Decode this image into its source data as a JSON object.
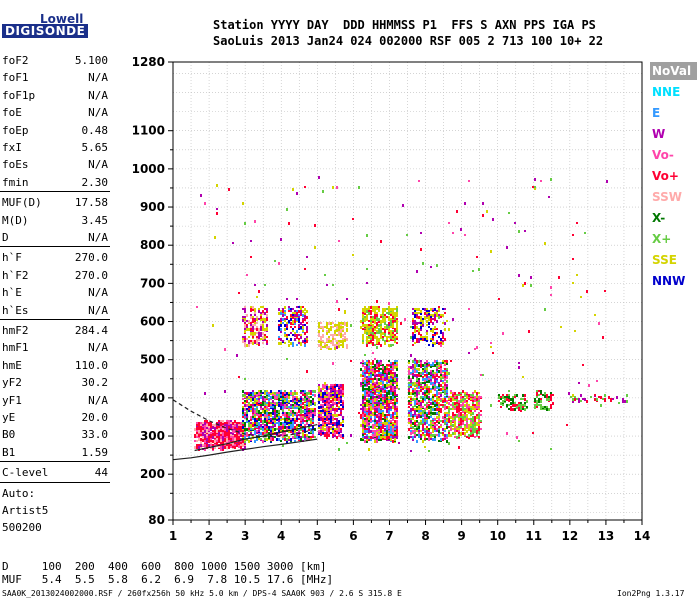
{
  "logo": {
    "top": "Lowell",
    "bottom": "DIGISONDE"
  },
  "header": {
    "line1": "Station YYYY DAY  DDD HHMMSS P1  FFS S AXN PPS IGA PS",
    "line2": "SaoLuis 2013 Jan24 024 002000 RSF 005 2 713 100 10+ 22"
  },
  "params": [
    {
      "name": "foF2",
      "value": "5.100"
    },
    {
      "name": "foF1",
      "value": "N/A"
    },
    {
      "name": "foF1p",
      "value": "N/A"
    },
    {
      "name": "foE",
      "value": "N/A"
    },
    {
      "name": "foEp",
      "value": "0.48"
    },
    {
      "name": "fxI",
      "value": "5.65"
    },
    {
      "name": "foEs",
      "value": "N/A"
    },
    {
      "name": "fmin",
      "value": "2.30"
    },
    {
      "name": "MUF(D)",
      "value": "17.58"
    },
    {
      "name": "M(D)",
      "value": "3.45"
    },
    {
      "name": "D",
      "value": "N/A"
    },
    {
      "name": "h`F",
      "value": "270.0"
    },
    {
      "name": "h`F2",
      "value": "270.0"
    },
    {
      "name": "h`E",
      "value": "N/A"
    },
    {
      "name": "h`Es",
      "value": "N/A"
    },
    {
      "name": "hmF2",
      "value": "284.4"
    },
    {
      "name": "hmF1",
      "value": "N/A"
    },
    {
      "name": "hmE",
      "value": "110.0"
    },
    {
      "name": "yF2",
      "value": "30.2"
    },
    {
      "name": "yF1",
      "value": "N/A"
    },
    {
      "name": "yE",
      "value": "20.0"
    },
    {
      "name": "B0",
      "value": "33.0"
    },
    {
      "name": "B1",
      "value": "1.59"
    },
    {
      "name": "C-level",
      "value": "44"
    }
  ],
  "auto": {
    "label": "Auto:",
    "artist": "Artist5",
    "code": "500200"
  },
  "legend": [
    {
      "label": "NoVal",
      "bg": "#a0a0a0",
      "fg": "#ffffff"
    },
    {
      "label": "NNE",
      "bg": "#ffffff",
      "fg": "#00e0ff"
    },
    {
      "label": "E",
      "bg": "#ffffff",
      "fg": "#3399ff"
    },
    {
      "label": "W",
      "bg": "#ffffff",
      "fg": "#b000b0"
    },
    {
      "label": "Vo-",
      "bg": "#ffffff",
      "fg": "#ff44aa"
    },
    {
      "label": "Vo+",
      "bg": "#ffffff",
      "fg": "#ff0033"
    },
    {
      "label": "SSW",
      "bg": "#ffffff",
      "fg": "#ffaaaa"
    },
    {
      "label": "X-",
      "bg": "#ffffff",
      "fg": "#007700"
    },
    {
      "label": "X+",
      "bg": "#ffffff",
      "fg": "#66cc44"
    },
    {
      "label": "SSE",
      "bg": "#ffffff",
      "fg": "#d4d400"
    },
    {
      "label": "NNW",
      "bg": "#ffffff",
      "fg": "#0000cc"
    }
  ],
  "bottom": {
    "d_line": "D     100  200  400  600  800 1000 1500 3000 [km]",
    "muf_line": "MUF   5.4  5.5  5.8  6.2  6.9  7.8 10.5 17.6 [MHz]",
    "footer": "SAA0K_2013024002000.RSF / 260fx256h 50 kHz 5.0 km / DPS-4 SAA0K 903 / 2.6 S 315.8 E",
    "version": "Ion2Png 1.3.17"
  },
  "chart_data": {
    "type": "scatter",
    "xlim": [
      1,
      14
    ],
    "ylim": [
      80,
      1280
    ],
    "xticks": [
      1,
      2,
      3,
      4,
      5,
      6,
      7,
      8,
      9,
      10,
      11,
      12,
      13,
      14
    ],
    "yticks": [
      80,
      200,
      300,
      400,
      500,
      600,
      700,
      800,
      900,
      1000,
      1100,
      1280
    ],
    "grid": true,
    "legend_placement": "right",
    "clusters": [
      {
        "x": [
          1.6,
          3.0
        ],
        "y": [
          270,
          340
        ],
        "density": 900,
        "colors": [
          "#ff0033",
          "#ff44aa",
          "#b000b0",
          "#ff0033",
          "#ffaaaa"
        ]
      },
      {
        "x": [
          2.9,
          4.9
        ],
        "y": [
          290,
          420
        ],
        "density": 1300,
        "colors": [
          "#ff0033",
          "#ff44aa",
          "#b000b0",
          "#007700",
          "#66cc44",
          "#d4d400",
          "#3399ff",
          "#0000cc"
        ]
      },
      {
        "x": [
          5.0,
          5.7
        ],
        "y": [
          300,
          440
        ],
        "density": 500,
        "colors": [
          "#ff0033",
          "#ff44aa",
          "#d4d400",
          "#b000b0",
          "#0000cc"
        ]
      },
      {
        "x": [
          6.2,
          7.2
        ],
        "y": [
          290,
          500
        ],
        "density": 1400,
        "colors": [
          "#ff0033",
          "#ff44aa",
          "#b000b0",
          "#007700",
          "#d4d400",
          "#3399ff"
        ]
      },
      {
        "x": [
          7.5,
          8.6
        ],
        "y": [
          290,
          500
        ],
        "density": 900,
        "colors": [
          "#ff0033",
          "#d4d400",
          "#66cc44",
          "#ff44aa",
          "#b000b0",
          "#007700",
          "#3399ff"
        ]
      },
      {
        "x": [
          8.6,
          9.5
        ],
        "y": [
          300,
          420
        ],
        "density": 500,
        "colors": [
          "#ff0033",
          "#d4d400",
          "#ff44aa",
          "#66cc44"
        ]
      },
      {
        "x": [
          2.9,
          3.6
        ],
        "y": [
          540,
          640
        ],
        "density": 220,
        "colors": [
          "#d4d400",
          "#ff0033",
          "#b000b0",
          "#ffaaaa"
        ]
      },
      {
        "x": [
          3.9,
          4.7
        ],
        "y": [
          540,
          640
        ],
        "density": 220,
        "colors": [
          "#d4d400",
          "#ff0033",
          "#b000b0",
          "#0000cc",
          "#3399ff"
        ]
      },
      {
        "x": [
          5.0,
          5.8
        ],
        "y": [
          530,
          600
        ],
        "density": 180,
        "colors": [
          "#d4d400",
          "#d4d400",
          "#ffaaaa"
        ]
      },
      {
        "x": [
          6.2,
          7.2
        ],
        "y": [
          540,
          640
        ],
        "density": 420,
        "colors": [
          "#d4d400",
          "#d4d400",
          "#ff0033",
          "#66cc44"
        ]
      },
      {
        "x": [
          7.6,
          8.5
        ],
        "y": [
          540,
          640
        ],
        "density": 200,
        "colors": [
          "#d4d400",
          "#ff0033",
          "#b000b0",
          "#0000cc"
        ]
      },
      {
        "x": [
          10.0,
          10.8
        ],
        "y": [
          370,
          410
        ],
        "density": 90,
        "colors": [
          "#66cc44",
          "#007700",
          "#ff0033"
        ]
      },
      {
        "x": [
          11.0,
          11.5
        ],
        "y": [
          370,
          420
        ],
        "density": 70,
        "colors": [
          "#66cc44",
          "#007700",
          "#ff0033"
        ]
      },
      {
        "x": [
          12.0,
          13.6
        ],
        "y": [
          390,
          410
        ],
        "density": 40,
        "colors": [
          "#66cc44",
          "#b000b0",
          "#ff0033"
        ]
      },
      {
        "x": [
          1.6,
          13.0
        ],
        "y": [
          250,
          980
        ],
        "density": 220,
        "colors": [
          "#d4d400",
          "#ff0033",
          "#b000b0",
          "#66cc44",
          "#ff44aa"
        ]
      }
    ],
    "curves": [
      {
        "name": "trace-lower",
        "style": "solid",
        "x": [
          1.0,
          1.5,
          2.0,
          2.5,
          3.0,
          3.5,
          4.0,
          4.5,
          5.0
        ],
        "y": [
          238,
          243,
          250,
          258,
          265,
          272,
          278,
          285,
          292
        ]
      },
      {
        "name": "trace-upper",
        "style": "solid",
        "x": [
          1.6,
          2.0,
          2.5,
          3.0,
          3.5,
          4.0,
          4.5,
          5.0
        ],
        "y": [
          262,
          270,
          280,
          292,
          300,
          310,
          320,
          330
        ]
      },
      {
        "name": "trace-dashed",
        "style": "dashed",
        "x": [
          1.0,
          1.5,
          2.0,
          2.5,
          3.0,
          3.5,
          4.0,
          4.5,
          5.0
        ],
        "y": [
          395,
          365,
          340,
          320,
          305,
          298,
          300,
          307,
          320
        ]
      }
    ]
  }
}
